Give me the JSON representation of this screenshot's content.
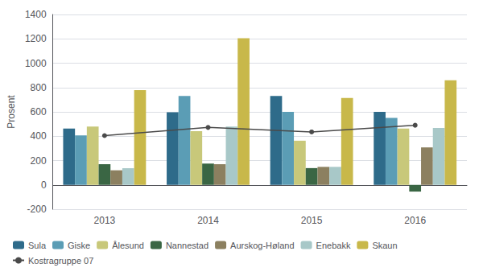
{
  "chart_data": {
    "type": "bar",
    "ylabel": "Prosent",
    "categories": [
      "2013",
      "2014",
      "2015",
      "2016"
    ],
    "series": [
      {
        "name": "Sula",
        "color": "#2e6b8a",
        "values": [
          463,
          597,
          730,
          600
        ]
      },
      {
        "name": "Giske",
        "color": "#5b9db5",
        "values": [
          406,
          731,
          600,
          550
        ]
      },
      {
        "name": "Ålesund",
        "color": "#c8c87a",
        "values": [
          479,
          441,
          363,
          463
        ]
      },
      {
        "name": "Nannestad",
        "color": "#3a6644",
        "values": [
          170,
          175,
          138,
          -55
        ]
      },
      {
        "name": "Aurskog-Høland",
        "color": "#8c8060",
        "values": [
          120,
          170,
          148,
          308
        ]
      },
      {
        "name": "Enebakk",
        "color": "#a8c8c8",
        "values": [
          137,
          480,
          148,
          468
        ]
      },
      {
        "name": "Skaun",
        "color": "#c8b84a",
        "values": [
          778,
          1205,
          714,
          860
        ]
      },
      {
        "name": "Kostragruppe 07",
        "type": "line",
        "marker": "circle",
        "color": "#4a4a4a",
        "values": [
          405,
          472,
          435,
          490
        ]
      }
    ],
    "ylim": [
      -200,
      1400
    ],
    "yticks": [
      -200,
      0,
      200,
      400,
      600,
      800,
      1000,
      1200,
      1400
    ],
    "grid": true,
    "legend": "bottom"
  }
}
